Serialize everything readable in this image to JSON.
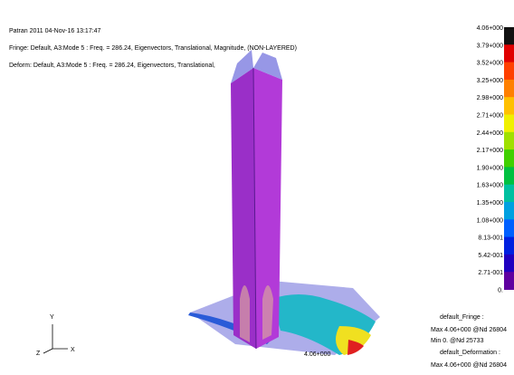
{
  "header": {
    "lines": [
      "Patran 2011 04-Nov-16 13:17:47",
      "Fringe: Default, A3:Mode 5 : Freq. = 286.24, Eigenvectors, Translational, Magnitude, (NON-LAYERED)",
      "Deform: Default, A3:Mode 5 : Freq. = 286.24, Eigenvectors, Translational,"
    ]
  },
  "legend": {
    "labels": [
      "4.06+000",
      "3.79+000",
      "3.52+000",
      "3.25+000",
      "2.98+000",
      "2.71+000",
      "2.44+000",
      "2.17+000",
      "1.90+000",
      "1.63+000",
      "1.35+000",
      "1.08+000",
      "8.13-001",
      "5.42-001",
      "2.71-001",
      "0."
    ]
  },
  "footer": {
    "lines": [
      "default_Fringe :",
      "Max 4.06+000 @Nd 26804",
      "Min 0. @Nd 25733",
      "default_Deformation :",
      "Max 4.06+000 @Nd 26804"
    ]
  },
  "model_label": "4.06+000",
  "axes": {
    "y": "Y",
    "z": "Z",
    "x": "X"
  }
}
